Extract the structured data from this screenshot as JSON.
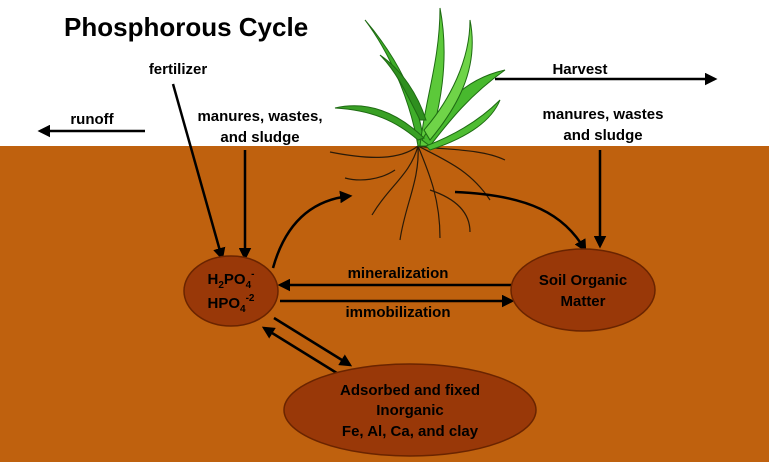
{
  "header": {
    "title": "Phosphorous Cycle"
  },
  "labels": {
    "fertilizer": "fertilizer",
    "runoff": "runoff",
    "harvest": "Harvest",
    "manures_left": [
      "manures, wastes,",
      "and sludge"
    ],
    "manures_right": [
      "manures, wastes",
      "and sludge"
    ],
    "mineralization": "mineralization",
    "immobilization": "immobilization"
  },
  "nodes": [
    {
      "lines": [
        [
          "H",
          "2",
          "PO",
          "4",
          "-"
        ],
        [
          "HPO",
          "4",
          "-2"
        ]
      ]
    },
    {
      "lines": [
        "Soil Organic",
        "Matter"
      ]
    },
    {
      "lines": [
        "Adsorbed and fixed",
        "Inorganic",
        "Fe, Al, Ca, and clay"
      ]
    }
  ]
}
